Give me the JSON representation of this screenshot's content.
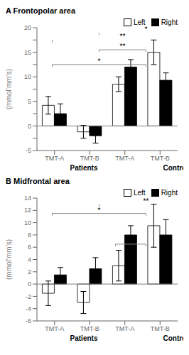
{
  "chart_data": [
    {
      "type": "bar",
      "title": "A Frontopolar area",
      "y_label": "(mmol’mm’s)",
      "categories": [
        "TMT-A",
        "TMT-B",
        "TMT-A",
        "TMT-B"
      ],
      "group_labels": [
        "Patients",
        "Controls"
      ],
      "series": [
        {
          "name": "Left",
          "color": "white",
          "values": [
            4.2,
            -1.2,
            8.5,
            15.0
          ],
          "errors": [
            1.8,
            1.3,
            1.5,
            2.5
          ]
        },
        {
          "name": "Right",
          "color": "black",
          "values": [
            2.5,
            -2.0,
            12.0,
            9.3
          ],
          "errors": [
            2.0,
            1.5,
            1.5,
            1.5
          ]
        }
      ],
      "ylim": [
        -5,
        20
      ],
      "yticks": [
        -5,
        {
          "value": -2.5,
          "label": null
        },
        0,
        {
          "value": 2.5,
          "label": null
        },
        5,
        {
          "value": 7.5,
          "label": null
        },
        10,
        {
          "value": 12.5,
          "label": null
        },
        15,
        {
          "value": 17.5,
          "label": null
        },
        20
      ],
      "grid": false,
      "legend": "upper right",
      "hlines": [
        {
          "y": 0,
          "color": "gray"
        }
      ],
      "brackets": [
        {
          "from": 0,
          "from_side": "left",
          "to": 2,
          "to_side": "left",
          "y": 12.5,
          "label": "*",
          "color": "#888888"
        },
        {
          "from": 1,
          "from_side": "left",
          "to": 2,
          "to_side": "left",
          "y": 15.5,
          "label": "**",
          "color": "#888888"
        },
        {
          "from": 0,
          "from_side": "left",
          "to": 3,
          "to_side": "left",
          "y": 17.5,
          "label": "**",
          "color": "#888888"
        },
        {
          "from": 1,
          "from_side": "left",
          "to": 3,
          "to_side": "left",
          "y": 19.0,
          "label": "*",
          "color": "#888888"
        }
      ]
    },
    {
      "type": "bar",
      "title": "B Midfrontal area",
      "y_label": "(mmol’mm’s)",
      "categories": [
        "TMT-A",
        "TMT-B",
        "TMT-A",
        "TMT-B"
      ],
      "group_labels": [
        "Patients",
        "Controls"
      ],
      "series": [
        {
          "name": "Left",
          "color": "white",
          "values": [
            -1.5,
            -3.0,
            3.0,
            9.5
          ],
          "errors": [
            2.0,
            1.8,
            2.5,
            3.5
          ]
        },
        {
          "name": "Right",
          "color": "black",
          "values": [
            1.5,
            2.5,
            8.0,
            8.0
          ],
          "errors": [
            1.2,
            1.8,
            1.5,
            2.5
          ]
        }
      ],
      "ylim": [
        -6,
        14
      ],
      "yticks": [
        -6,
        -4,
        -2,
        0,
        2,
        4,
        6,
        8,
        10,
        12,
        14
      ],
      "grid": false,
      "legend": "upper right",
      "hlines": [
        {
          "y": 0,
          "color": "gray"
        }
      ],
      "brackets": [
        {
          "from": 0,
          "from_side": "left",
          "to": 2,
          "to_side": "left",
          "y": 11.5,
          "label": "*",
          "color": "#888888"
        },
        {
          "from": 1,
          "from_side": "left",
          "to": 3,
          "to_side": "left",
          "y": 13.0,
          "label": "**",
          "color": "#888888"
        },
        {
          "from": 1,
          "from_side": "right",
          "to": 2,
          "to_side": "left",
          "y": 6.5,
          "label": "*",
          "color": "#888888"
        }
      ]
    }
  ]
}
